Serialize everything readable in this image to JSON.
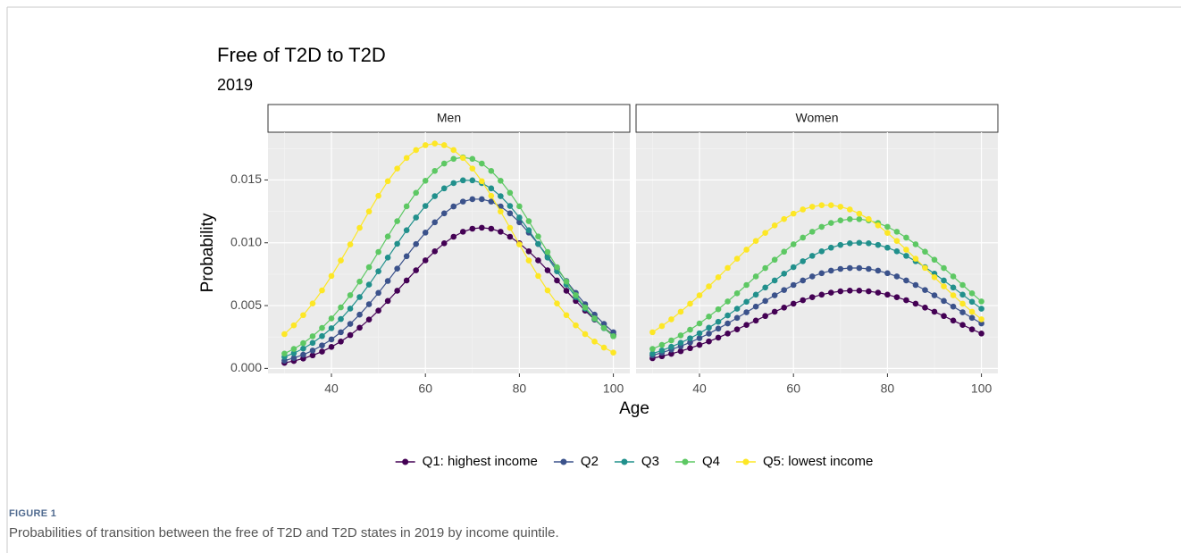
{
  "chart_data": {
    "type": "line",
    "title": "Free of T2D to T2D",
    "subtitle": "2019",
    "x_label": "Age",
    "y_label": "Probability",
    "facets": [
      "Men",
      "Women"
    ],
    "x": [
      30,
      32,
      34,
      36,
      38,
      40,
      42,
      44,
      46,
      48,
      50,
      52,
      54,
      56,
      58,
      60,
      62,
      64,
      66,
      68,
      70,
      72,
      74,
      76,
      78,
      80,
      82,
      84,
      86,
      88,
      90,
      92,
      94,
      96,
      98,
      100
    ],
    "xlim": [
      26.5,
      103.5
    ],
    "xticks": [
      40,
      60,
      80,
      100
    ],
    "ylim": [
      -0.0004,
      0.0188
    ],
    "yticks": [
      {
        "value": 0,
        "label": "0.000"
      },
      {
        "value": 0.005,
        "label": "0.005"
      },
      {
        "value": 0.01,
        "label": "0.010"
      },
      {
        "value": 0.015,
        "label": "0.015"
      }
    ],
    "grid": true,
    "legend": "bottom",
    "series": [
      {
        "name": "Q1: highest income",
        "color": "#440154",
        "values": [
          [
            0.00044,
            0.00059,
            0.00079,
            0.00104,
            0.00134,
            0.00171,
            0.00214,
            0.00265,
            0.00324,
            0.00389,
            0.0046,
            0.00537,
            0.00618,
            0.007,
            0.00781,
            0.0086,
            0.00932,
            0.00996,
            0.01048,
            0.01088,
            0.01112,
            0.0112,
            0.01112,
            0.01088,
            0.01048,
            0.00996,
            0.00932,
            0.0086,
            0.00781,
            0.007,
            0.00618,
            0.00537,
            0.0046,
            0.00389,
            0.00324,
            0.00265
          ],
          [
            0.00081,
            0.00097,
            0.00116,
            0.00137,
            0.00161,
            0.00187,
            0.00215,
            0.00245,
            0.00278,
            0.00311,
            0.00346,
            0.00381,
            0.00417,
            0.00451,
            0.00484,
            0.00515,
            0.00543,
            0.00567,
            0.00587,
            0.00603,
            0.00614,
            0.00619,
            0.00619,
            0.00614,
            0.00603,
            0.00587,
            0.00567,
            0.00543,
            0.00515,
            0.00484,
            0.00451,
            0.00417,
            0.00381,
            0.00346,
            0.00311,
            0.00278
          ]
        ]
      },
      {
        "name": "Q2",
        "color": "#3b528b",
        "values": [
          [
            0.00062,
            0.00083,
            0.00109,
            0.00142,
            0.00183,
            0.00231,
            0.00288,
            0.00354,
            0.00428,
            0.00511,
            0.00601,
            0.00696,
            0.00794,
            0.00893,
            0.0099,
            0.01081,
            0.01163,
            0.01234,
            0.01289,
            0.01328,
            0.01347,
            0.01347,
            0.01328,
            0.01289,
            0.01234,
            0.01163,
            0.01081,
            0.0099,
            0.00893,
            0.00794,
            0.00696,
            0.00601,
            0.00511,
            0.00428,
            0.00354,
            0.00288
          ],
          [
            0.00104,
            0.00125,
            0.0015,
            0.00177,
            0.00207,
            0.00241,
            0.00277,
            0.00317,
            0.00358,
            0.00402,
            0.00447,
            0.00492,
            0.00537,
            0.00582,
            0.00624,
            0.00664,
            0.007,
            0.00732,
            0.00758,
            0.00778,
            0.00792,
            0.00799,
            0.00799,
            0.00792,
            0.00778,
            0.00758,
            0.00732,
            0.007,
            0.00664,
            0.00624,
            0.00582,
            0.00537,
            0.00492,
            0.00447,
            0.00402,
            0.00358
          ]
        ]
      },
      {
        "name": "Q3",
        "color": "#21908c",
        "values": [
          [
            0.00092,
            0.00121,
            0.00158,
            0.00203,
            0.00257,
            0.0032,
            0.00393,
            0.00476,
            0.00568,
            0.00667,
            0.00773,
            0.00882,
            0.00992,
            0.011,
            0.01201,
            0.01293,
            0.01371,
            0.01433,
            0.01475,
            0.01497,
            0.01497,
            0.01475,
            0.01433,
            0.01371,
            0.01293,
            0.01201,
            0.011,
            0.00992,
            0.00882,
            0.00773,
            0.00667,
            0.00568,
            0.00476,
            0.00393,
            0.0032,
            0.00257
          ],
          [
            0.00118,
            0.00143,
            0.00172,
            0.00204,
            0.0024,
            0.0028,
            0.00324,
            0.00371,
            0.00422,
            0.00475,
            0.0053,
            0.00587,
            0.00644,
            0.007,
            0.00754,
            0.00806,
            0.00853,
            0.00896,
            0.00932,
            0.00961,
            0.00983,
            0.00996,
            0.01,
            0.00996,
            0.00983,
            0.00961,
            0.00932,
            0.00896,
            0.00853,
            0.00806,
            0.00754,
            0.007,
            0.00644,
            0.00587,
            0.0053,
            0.00475
          ]
        ]
      },
      {
        "name": "Q4",
        "color": "#5dc863",
        "values": [
          [
            0.00118,
            0.00155,
            0.00201,
            0.00256,
            0.00322,
            0.00398,
            0.00486,
            0.00583,
            0.00691,
            0.00806,
            0.00927,
            0.0105,
            0.01172,
            0.0129,
            0.01398,
            0.01494,
            0.01572,
            0.01631,
            0.01668,
            0.0168,
            0.01668,
            0.01631,
            0.01572,
            0.01494,
            0.01398,
            0.0129,
            0.01172,
            0.0105,
            0.00927,
            0.00806,
            0.00691,
            0.00583,
            0.00486,
            0.00398,
            0.00322,
            0.00256
          ],
          [
            0.00155,
            0.00187,
            0.00223,
            0.00263,
            0.00308,
            0.00358,
            0.00413,
            0.00471,
            0.00533,
            0.00598,
            0.00664,
            0.00732,
            0.00799,
            0.00865,
            0.00929,
            0.00988,
            0.01041,
            0.01088,
            0.01127,
            0.01158,
            0.01178,
            0.01188,
            0.01188,
            0.01178,
            0.01158,
            0.01127,
            0.01088,
            0.01041,
            0.00988,
            0.00929,
            0.00865,
            0.00799,
            0.00732,
            0.00664,
            0.00598,
            0.00533
          ]
        ]
      },
      {
        "name": "Q5: lowest income",
        "color": "#fde725",
        "values": [
          [
            0.00273,
            0.00343,
            0.00424,
            0.00517,
            0.00621,
            0.00736,
            0.00859,
            0.00987,
            0.01119,
            0.01249,
            0.01374,
            0.0149,
            0.01591,
            0.01675,
            0.01738,
            0.01777,
            0.0179,
            0.01777,
            0.01738,
            0.01675,
            0.01591,
            0.0149,
            0.01374,
            0.01249,
            0.01119,
            0.00987,
            0.00859,
            0.00736,
            0.00621,
            0.00517,
            0.00424,
            0.00343,
            0.00273,
            0.00214,
            0.00166,
            0.00126
          ],
          [
            0.00288,
            0.00337,
            0.00391,
            0.00451,
            0.00515,
            0.00582,
            0.00653,
            0.00726,
            0.008,
            0.00873,
            0.00945,
            0.01015,
            0.01079,
            0.01138,
            0.01189,
            0.01232,
            0.01265,
            0.01287,
            0.01299,
            0.01299,
            0.01287,
            0.01265,
            0.01232,
            0.01189,
            0.01138,
            0.01079,
            0.01015,
            0.00945,
            0.00873,
            0.008,
            0.00726,
            0.00653,
            0.00582,
            0.00515,
            0.00451,
            0.00391
          ]
        ]
      }
    ]
  },
  "figure": {
    "label": "FIGURE 1",
    "caption": "Probabilities of transition between the free of T2D and T2D states in 2019 by income quintile."
  }
}
